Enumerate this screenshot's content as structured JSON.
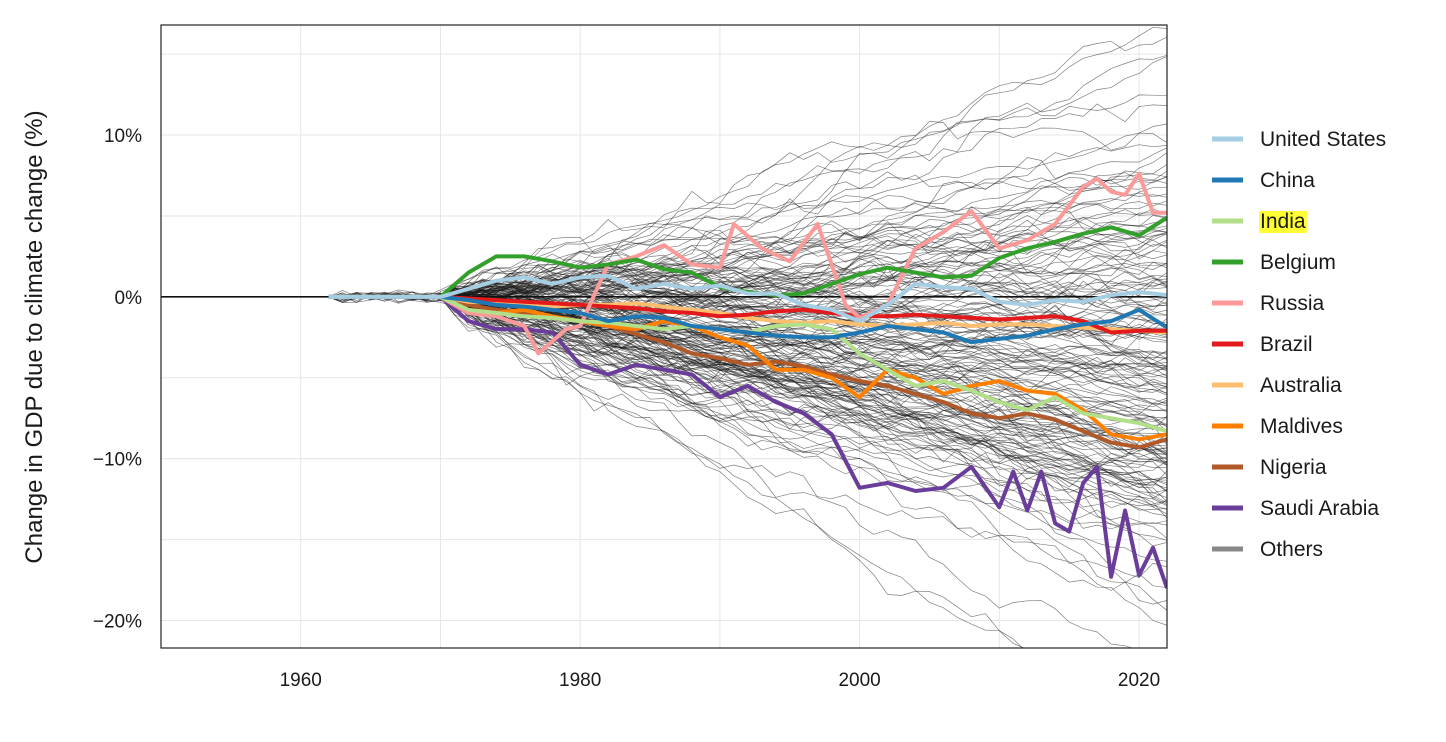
{
  "chart_data": {
    "type": "line",
    "title": "",
    "xlabel": "",
    "ylabel": "Change in GDP due to climate change (%)",
    "xlim": [
      1950,
      2022
    ],
    "ylim": [
      -21.7,
      16.8
    ],
    "x_ticks": [
      1960,
      1980,
      2000,
      2020
    ],
    "x_tick_labels": [
      "1960",
      "1980",
      "2000",
      "2020"
    ],
    "y_ticks": [
      10,
      0,
      -10,
      -20
    ],
    "y_tick_labels": [
      "10%",
      "0%",
      "−10%",
      "−20%"
    ],
    "grid": true,
    "legend_position": "right",
    "highlighted_legend_entry": "India",
    "highlight_color": "#ffff33",
    "series": [
      {
        "name": "United States",
        "color": "#a6cee3",
        "x": [
          1962,
          1966,
          1970,
          1972,
          1974,
          1976,
          1978,
          1980,
          1982,
          1984,
          1986,
          1988,
          1990,
          1992,
          1994,
          1996,
          1998,
          2000,
          2002,
          2004,
          2006,
          2008,
          2010,
          2012,
          2014,
          2016,
          2018,
          2020,
          2022
        ],
        "y": [
          0,
          0,
          0,
          0.5,
          1,
          1.2,
          0.8,
          1.2,
          1.3,
          0.5,
          0.8,
          0.5,
          0.7,
          0.2,
          0.2,
          -0.5,
          -0.8,
          -1.5,
          -0.5,
          0.8,
          0.6,
          0.5,
          -0.3,
          -0.5,
          -0.2,
          -0.3,
          0.1,
          0.3,
          0.1
        ]
      },
      {
        "name": "China",
        "color": "#1f78b4",
        "x": [
          1962,
          1966,
          1970,
          1972,
          1974,
          1976,
          1978,
          1980,
          1982,
          1984,
          1986,
          1988,
          1990,
          1992,
          1994,
          1996,
          1998,
          2000,
          2002,
          2004,
          2006,
          2008,
          2010,
          2012,
          2014,
          2016,
          2018,
          2020,
          2022
        ],
        "y": [
          0,
          0,
          0,
          -0.2,
          -0.5,
          -0.6,
          -0.8,
          -1,
          -1.5,
          -1.2,
          -1.3,
          -1.8,
          -2,
          -2.2,
          -2.4,
          -2.5,
          -2.5,
          -2.2,
          -1.8,
          -2,
          -2.2,
          -2.8,
          -2.6,
          -2.4,
          -2,
          -1.7,
          -1.5,
          -0.8,
          -1.9
        ]
      },
      {
        "name": "India",
        "color": "#b2df8a",
        "x": [
          1962,
          1966,
          1970,
          1972,
          1974,
          1976,
          1978,
          1980,
          1982,
          1984,
          1986,
          1988,
          1990,
          1992,
          1994,
          1996,
          1998,
          2000,
          2002,
          2004,
          2006,
          2008,
          2010,
          2012,
          2014,
          2016,
          2018,
          2020,
          2022
        ],
        "y": [
          0,
          0,
          0,
          -0.8,
          -1,
          -1.2,
          -1.3,
          -1.5,
          -1.6,
          -1.8,
          -2,
          -1.8,
          -2,
          -2.2,
          -1.8,
          -1.7,
          -2,
          -3.5,
          -4.5,
          -5.5,
          -5.2,
          -5.8,
          -6.5,
          -7,
          -6.2,
          -7.2,
          -7.5,
          -7.8,
          -8.3
        ]
      },
      {
        "name": "Belgium",
        "color": "#33a02c",
        "x": [
          1962,
          1966,
          1970,
          1972,
          1974,
          1976,
          1978,
          1980,
          1982,
          1984,
          1986,
          1988,
          1990,
          1992,
          1994,
          1996,
          1998,
          2000,
          2002,
          2004,
          2006,
          2008,
          2010,
          2012,
          2014,
          2016,
          2018,
          2020,
          2022
        ],
        "y": [
          0,
          0,
          0,
          1.5,
          2.5,
          2.5,
          2.2,
          1.8,
          2,
          2.3,
          1.7,
          1.5,
          0.6,
          0.3,
          0.1,
          0.2,
          0.8,
          1.4,
          1.8,
          1.5,
          1.2,
          1.3,
          2.4,
          3,
          3.4,
          3.9,
          4.3,
          3.8,
          4.9
        ]
      },
      {
        "name": "Russia",
        "color": "#fb9a99",
        "x": [
          1962,
          1966,
          1970,
          1972,
          1974,
          1976,
          1977,
          1979,
          1980,
          1982,
          1984,
          1986,
          1988,
          1990,
          1991,
          1993,
          1995,
          1997,
          1999,
          2000,
          2002,
          2004,
          2006,
          2008,
          2010,
          2012,
          2014,
          2016,
          2017,
          2018,
          2019,
          2020,
          2021,
          2022
        ],
        "y": [
          0,
          0,
          0,
          -1,
          -1.2,
          -1.8,
          -3.5,
          -2,
          -1.8,
          2,
          2.5,
          3.2,
          2,
          1.8,
          4.5,
          3,
          2.2,
          4.5,
          -0.5,
          -1.3,
          -0.5,
          3,
          4,
          5.3,
          3,
          3.5,
          4.5,
          6.8,
          7.3,
          6.5,
          6.3,
          7.6,
          5.2,
          5.2
        ]
      },
      {
        "name": "Brazil",
        "color": "#e31a1c",
        "x": [
          1962,
          1966,
          1970,
          1972,
          1974,
          1976,
          1978,
          1980,
          1982,
          1984,
          1986,
          1988,
          1990,
          1992,
          1994,
          1996,
          1998,
          2000,
          2002,
          2004,
          2006,
          2008,
          2010,
          2012,
          2014,
          2016,
          2018,
          2020,
          2022
        ],
        "y": [
          0,
          0,
          0,
          -0.1,
          -0.2,
          -0.3,
          -0.4,
          -0.5,
          -0.6,
          -0.7,
          -0.9,
          -1,
          -1.2,
          -1.1,
          -0.9,
          -0.8,
          -1,
          -1.2,
          -1.2,
          -1.1,
          -1.2,
          -1.3,
          -1.4,
          -1.3,
          -1.2,
          -1.5,
          -2.2,
          -2.1,
          -2.1
        ]
      },
      {
        "name": "Australia",
        "color": "#fdbf6f",
        "x": [
          1962,
          1966,
          1970,
          1972,
          1974,
          1976,
          1978,
          1980,
          1982,
          1984,
          1986,
          1988,
          1990,
          1992,
          1994,
          1996,
          1998,
          2000,
          2002,
          2004,
          2006,
          2008,
          2010,
          2012,
          2014,
          2016,
          2018,
          2020,
          2022
        ],
        "y": [
          0,
          0,
          0,
          -0.3,
          -0.4,
          -0.5,
          -0.6,
          -0.5,
          -0.5,
          -0.4,
          -0.6,
          -0.8,
          -1,
          -1.3,
          -1.5,
          -1.6,
          -1.5,
          -1.7,
          -1.8,
          -1.7,
          -1.6,
          -1.8,
          -1.7,
          -1.7,
          -1.8,
          -1.9,
          -2,
          -2.1,
          -2.2
        ]
      },
      {
        "name": "Maldives",
        "color": "#ff7f00",
        "x": [
          1962,
          1966,
          1970,
          1972,
          1974,
          1976,
          1978,
          1980,
          1982,
          1984,
          1986,
          1988,
          1990,
          1992,
          1994,
          1996,
          1998,
          2000,
          2002,
          2004,
          2006,
          2008,
          2010,
          2012,
          2014,
          2016,
          2018,
          2020,
          2022
        ],
        "y": [
          0,
          0,
          0,
          -0.8,
          -1,
          -0.8,
          -1.2,
          -1.5,
          -1.8,
          -2,
          -1.5,
          -1.8,
          -2.5,
          -3,
          -4.5,
          -4.5,
          -5,
          -6.2,
          -4.5,
          -5,
          -6,
          -5.5,
          -5.2,
          -5.8,
          -6,
          -7,
          -8.5,
          -8.8,
          -8.5
        ]
      },
      {
        "name": "Nigeria",
        "color": "#b15928",
        "x": [
          1962,
          1966,
          1970,
          1972,
          1974,
          1976,
          1978,
          1980,
          1982,
          1984,
          1986,
          1988,
          1990,
          1992,
          1994,
          1996,
          1998,
          2000,
          2002,
          2004,
          2006,
          2008,
          2010,
          2012,
          2014,
          2016,
          2018,
          2020,
          2022
        ],
        "y": [
          0,
          0,
          0,
          -0.5,
          -0.8,
          -1,
          -1.3,
          -1.5,
          -1.8,
          -2.3,
          -2.8,
          -3.5,
          -3.8,
          -4.2,
          -4,
          -4.3,
          -4.8,
          -5.2,
          -5.5,
          -6,
          -6.5,
          -7.2,
          -7.5,
          -7.2,
          -7.6,
          -8.3,
          -9,
          -9.3,
          -8.8
        ]
      },
      {
        "name": "Saudi Arabia",
        "color": "#6a3d9a",
        "x": [
          1962,
          1966,
          1970,
          1972,
          1974,
          1976,
          1978,
          1980,
          1982,
          1984,
          1986,
          1988,
          1990,
          1992,
          1994,
          1996,
          1998,
          2000,
          2002,
          2004,
          2006,
          2008,
          2010,
          2011,
          2012,
          2013,
          2014,
          2015,
          2016,
          2017,
          2018,
          2019,
          2020,
          2021,
          2022
        ],
        "y": [
          0,
          0,
          0,
          -1.5,
          -2,
          -2,
          -2.2,
          -4.2,
          -4.8,
          -4.2,
          -4.5,
          -4.8,
          -6.2,
          -5.5,
          -6.5,
          -7.2,
          -8.5,
          -11.8,
          -11.5,
          -12,
          -11.8,
          -10.5,
          -13,
          -10.8,
          -13.2,
          -10.8,
          -14,
          -14.5,
          -11.5,
          -10.5,
          -17.3,
          -13.2,
          -17.2,
          -15.5,
          -18
        ]
      },
      {
        "name": "Others",
        "color": "#888888",
        "x": [],
        "y": []
      }
    ]
  }
}
